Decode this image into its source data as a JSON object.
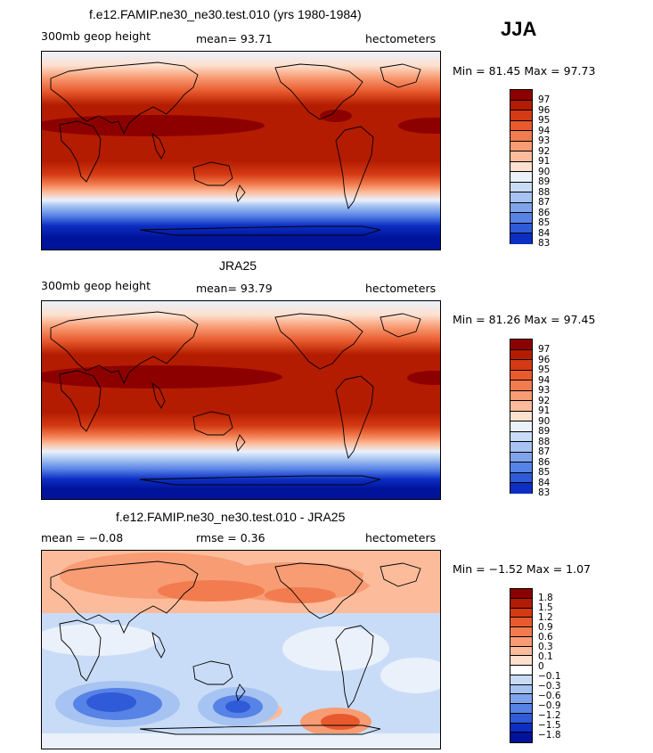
{
  "season": "JJA",
  "panels": [
    {
      "title": "f.e12.FAMIP.ne30_ne30.test.010 (yrs 1980-1984)",
      "left_label": "300mb geop height",
      "center_label": "mean=  93.71",
      "right_label": "hectometers",
      "minmax": "Min =  81.45 Max =  97.73"
    },
    {
      "title": "JRA25",
      "left_label": "300mb geop height",
      "center_label": "mean=  93.79",
      "right_label": "hectometers",
      "minmax": "Min =  81.26 Max =  97.45"
    },
    {
      "title": "f.e12.FAMIP.ne30_ne30.test.010 - JRA25",
      "left_label": "mean =  −0.08",
      "center_label": "rmse =   0.36",
      "right_label": "hectometers",
      "minmax": "Min =  −1.52 Max =   1.07"
    }
  ],
  "colorbars": {
    "height_levels": [
      "97",
      "96",
      "95",
      "94",
      "93",
      "92",
      "91",
      "90",
      "89",
      "88",
      "87",
      "86",
      "85",
      "84",
      "83"
    ],
    "height_colors": [
      "#8c0000",
      "#b31c00",
      "#d43a14",
      "#e85a2e",
      "#f27c4f",
      "#f89c74",
      "#fcbc9c",
      "#fde0ce",
      "#eaf1fb",
      "#c9dcf7",
      "#a6c3f2",
      "#7fa4ec",
      "#5782e6",
      "#2f5bd8",
      "#0c2ec2",
      "#00139a"
    ],
    "diff_levels": [
      "1.8",
      "1.5",
      "1.2",
      "0.9",
      "0.6",
      "0.3",
      "0.1",
      "0",
      "−0.1",
      "−0.3",
      "−0.6",
      "−0.9",
      "−1.2",
      "−1.5",
      "−1.8"
    ],
    "diff_colors": [
      "#8c0000",
      "#b31c00",
      "#d43a14",
      "#e85a2e",
      "#f27c4f",
      "#f89c74",
      "#fcbc9c",
      "#fde0ce",
      "#ffffff",
      "#c9dcf7",
      "#a6c3f2",
      "#7fa4ec",
      "#5782e6",
      "#2f5bd8",
      "#0c2ec2",
      "#00139a"
    ]
  },
  "chart_data": [
    {
      "type": "heatmap",
      "title": "f.e12.FAMIP.ne30_ne30.test.010 (yrs 1980-1984)",
      "variable": "300mb geop height",
      "units": "hectometers",
      "mean": 93.71,
      "min": 81.45,
      "max": 97.73,
      "contour_levels": [
        83,
        84,
        85,
        86,
        87,
        88,
        89,
        90,
        91,
        92,
        93,
        94,
        95,
        96,
        97
      ]
    },
    {
      "type": "heatmap",
      "title": "JRA25",
      "variable": "300mb geop height",
      "units": "hectometers",
      "mean": 93.79,
      "min": 81.26,
      "max": 97.45,
      "contour_levels": [
        83,
        84,
        85,
        86,
        87,
        88,
        89,
        90,
        91,
        92,
        93,
        94,
        95,
        96,
        97
      ]
    },
    {
      "type": "heatmap",
      "title": "f.e12.FAMIP.ne30_ne30.test.010 - JRA25",
      "units": "hectometers",
      "mean": -0.08,
      "rmse": 0.36,
      "min": -1.52,
      "max": 1.07,
      "contour_levels": [
        -1.8,
        -1.5,
        -1.2,
        -0.9,
        -0.6,
        -0.3,
        -0.1,
        0,
        0.1,
        0.3,
        0.6,
        0.9,
        1.2,
        1.5,
        1.8
      ]
    }
  ]
}
